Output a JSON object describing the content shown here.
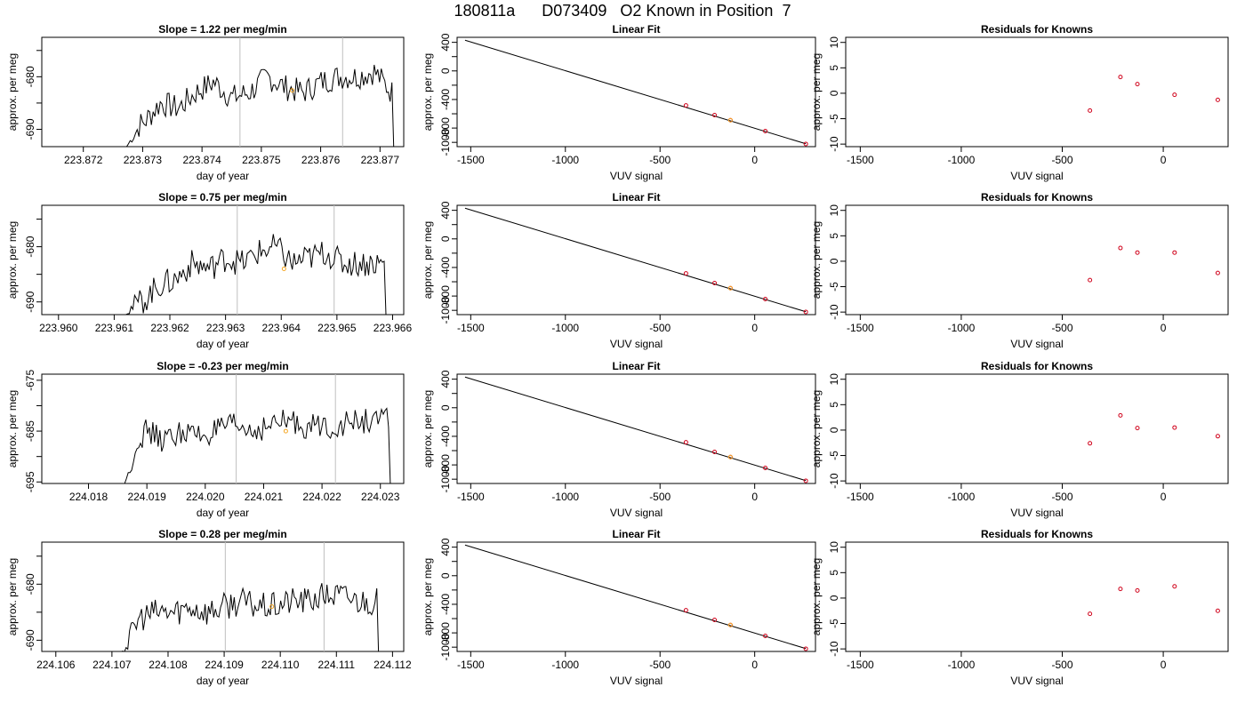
{
  "title": "180811a      D073409   O2 Known in Position  7",
  "colors": {
    "line": "#000000",
    "marker_orange": "#f5a623",
    "marker_red": "#d0021b",
    "guide": "#bfbfbf"
  },
  "chart_data": [
    {
      "type": "line",
      "row": 0,
      "col": 0,
      "title": "Slope =  1.22  per meg/min",
      "xlabel": "day of year",
      "ylabel": "approx. per meg",
      "xlim": [
        223.8713,
        223.8774
      ],
      "ylim": [
        -693.3,
        -672.5
      ],
      "xticks": [
        223.872,
        223.873,
        223.874,
        223.875,
        223.876,
        223.877
      ],
      "xtick_labels": [
        "223.872",
        "223.873",
        "223.874",
        "223.875",
        "223.876",
        "223.877"
      ],
      "yticks": [
        -690,
        -685,
        -680,
        -675
      ],
      "ytick_labels": [
        "-690",
        "",
        "-680",
        ""
      ],
      "vlines": [
        223.87464,
        223.87637
      ],
      "marker": [
        223.87552,
        -682.6
      ],
      "series_start": 223.87273,
      "series_end": 223.87723,
      "series_drop": -693.3,
      "series_base": -684.2,
      "series_trend": 1.3,
      "series": [
        {
          "x": [
            223.873,
            223.8733,
            223.8736,
            223.8739,
            223.8742,
            223.8745,
            223.8748,
            223.8751,
            223.8754,
            223.8757,
            223.876,
            223.8763,
            223.8766,
            223.8769,
            223.8772
          ],
          "y": [
            -689,
            -685,
            -686,
            -683,
            -681,
            -684,
            -683,
            -680,
            -682,
            -683,
            -681,
            -680,
            -680,
            -679,
            -683
          ]
        }
      ]
    },
    {
      "type": "scatter",
      "row": 0,
      "col": 1,
      "title": "Linear Fit",
      "xlabel": "VUV signal",
      "ylabel": "approx. per meg",
      "xlim": [
        -1572,
        321
      ],
      "ylim": [
        -1060,
        470
      ],
      "xticks": [
        -1500,
        -1000,
        -500,
        0
      ],
      "xtick_labels": [
        "-1500",
        "-1000",
        "-500",
        "0"
      ],
      "yticks": [
        400,
        200,
        0,
        -200,
        -400,
        -600,
        -800,
        -1000
      ],
      "ytick_labels": [
        "400",
        "",
        "0",
        "",
        "-400",
        "",
        "-800",
        "-1000"
      ],
      "fit_line": [
        [
          -1530,
          430
        ],
        [
          270,
          -1020
        ]
      ],
      "points": [
        [
          -363,
          -483
        ],
        [
          -212,
          -618
        ],
        [
          -128,
          -690
        ],
        [
          56,
          -842
        ],
        [
          270,
          -1022
        ]
      ],
      "highlight": [
        -128,
        -690
      ]
    },
    {
      "type": "scatter",
      "row": 0,
      "col": 2,
      "title": "Residuals for Knowns",
      "xlabel": "VUV signal",
      "ylabel": "approx. per meg",
      "xlim": [
        -1572,
        321
      ],
      "ylim": [
        -10.5,
        11.0
      ],
      "xticks": [
        -1500,
        -1000,
        -500,
        0
      ],
      "xtick_labels": [
        "-1500",
        "-1000",
        "-500",
        "0"
      ],
      "yticks": [
        10,
        5,
        0,
        -5,
        -10
      ],
      "ytick_labels": [
        "10",
        "5",
        "0",
        "-5",
        "-10"
      ],
      "points": [
        [
          -363,
          -3.4
        ],
        [
          -212,
          3.2
        ],
        [
          -128,
          1.8
        ],
        [
          56,
          -0.3
        ],
        [
          270,
          -1.3
        ]
      ]
    },
    {
      "type": "line",
      "row": 1,
      "col": 0,
      "title": "Slope =  0.75  per meg/min",
      "xlabel": "day of year",
      "ylabel": "approx. per meg",
      "xlim": [
        223.9597,
        223.9662
      ],
      "ylim": [
        -692.3,
        -672.5
      ],
      "xticks": [
        223.96,
        223.961,
        223.962,
        223.963,
        223.964,
        223.965,
        223.966
      ],
      "xtick_labels": [
        "223.960",
        "223.961",
        "223.962",
        "223.963",
        "223.964",
        "223.965",
        "223.966"
      ],
      "yticks": [
        -690,
        -685,
        -680,
        -675
      ],
      "ytick_labels": [
        "-690",
        "",
        "-680",
        ""
      ],
      "vlines": [
        223.96321,
        223.96495
      ],
      "marker": [
        223.96405,
        -684.0
      ],
      "series_start": 223.96118,
      "series_end": 223.96588,
      "series_drop": -692.3,
      "series_base": -685.0,
      "series_trend": 1.0,
      "series": [
        {
          "x": [
            223.9615,
            223.9618,
            223.9621,
            223.9624,
            223.9627,
            223.963,
            223.9633,
            223.9636,
            223.9639,
            223.9642,
            223.9645,
            223.9648,
            223.9651,
            223.9654,
            223.9657
          ],
          "y": [
            -690,
            -687,
            -686,
            -683,
            -684,
            -682,
            -683,
            -681,
            -680,
            -683,
            -682,
            -681,
            -683,
            -683,
            -683
          ]
        }
      ]
    },
    {
      "type": "scatter",
      "row": 1,
      "col": 1,
      "title": "Linear Fit",
      "xlabel": "VUV signal",
      "ylabel": "approx. per meg",
      "xlim": [
        -1572,
        321
      ],
      "ylim": [
        -1060,
        470
      ],
      "xticks": [
        -1500,
        -1000,
        -500,
        0
      ],
      "xtick_labels": [
        "-1500",
        "-1000",
        "-500",
        "0"
      ],
      "yticks": [
        400,
        200,
        0,
        -200,
        -400,
        -600,
        -800,
        -1000
      ],
      "ytick_labels": [
        "400",
        "",
        "0",
        "",
        "-400",
        "",
        "-800",
        "-1000"
      ],
      "fit_line": [
        [
          -1530,
          430
        ],
        [
          270,
          -1020
        ]
      ],
      "points": [
        [
          -363,
          -483
        ],
        [
          -212,
          -618
        ],
        [
          -128,
          -690
        ],
        [
          56,
          -842
        ],
        [
          270,
          -1022
        ]
      ],
      "highlight": [
        -128,
        -690
      ]
    },
    {
      "type": "scatter",
      "row": 1,
      "col": 2,
      "title": "Residuals for Knowns",
      "xlabel": "VUV signal",
      "ylabel": "approx. per meg",
      "xlim": [
        -1572,
        321
      ],
      "ylim": [
        -10.5,
        11.0
      ],
      "xticks": [
        -1500,
        -1000,
        -500,
        0
      ],
      "xtick_labels": [
        "-1500",
        "-1000",
        "-500",
        "0"
      ],
      "yticks": [
        10,
        5,
        0,
        -5,
        -10
      ],
      "ytick_labels": [
        "10",
        "5",
        "0",
        "-5",
        "-10"
      ],
      "points": [
        [
          -363,
          -3.7
        ],
        [
          -212,
          2.6
        ],
        [
          -128,
          1.7
        ],
        [
          56,
          1.7
        ],
        [
          270,
          -2.3
        ]
      ]
    },
    {
      "type": "line",
      "row": 2,
      "col": 0,
      "title": "Slope =  -0.23  per meg/min",
      "xlabel": "day of year",
      "ylabel": "approx. per meg",
      "xlim": [
        224.0172,
        224.0234
      ],
      "ylim": [
        -695.3,
        -673.8
      ],
      "xticks": [
        224.018,
        224.019,
        224.02,
        224.021,
        224.022,
        224.023
      ],
      "xtick_labels": [
        "224.018",
        "224.019",
        "224.020",
        "224.021",
        "224.022",
        "224.023"
      ],
      "yticks": [
        -695,
        -690,
        -685,
        -680,
        -675
      ],
      "ytick_labels": [
        "-695",
        "",
        "-685",
        "",
        "-675"
      ],
      "vlines": [
        224.02053,
        224.02223
      ],
      "marker": [
        224.02138,
        -685.0
      ],
      "series_start": 224.01862,
      "series_end": 224.02317,
      "series_drop": -695.3,
      "series_base": -685.6,
      "series_trend": 0.8,
      "series": [
        {
          "x": [
            224.0187,
            224.019,
            224.0193,
            224.0196,
            224.0199,
            224.0202,
            224.0205,
            224.0208,
            224.0211,
            224.0214,
            224.0217,
            224.022,
            224.0223,
            224.0226,
            224.0229
          ],
          "y": [
            -688,
            -685,
            -687,
            -685,
            -686,
            -685,
            -684,
            -685,
            -684,
            -683,
            -684,
            -684,
            -684,
            -683,
            -683
          ]
        }
      ]
    },
    {
      "type": "scatter",
      "row": 2,
      "col": 1,
      "title": "Linear Fit",
      "xlabel": "VUV signal",
      "ylabel": "approx. per meg",
      "xlim": [
        -1572,
        321
      ],
      "ylim": [
        -1060,
        470
      ],
      "xticks": [
        -1500,
        -1000,
        -500,
        0
      ],
      "xtick_labels": [
        "-1500",
        "-1000",
        "-500",
        "0"
      ],
      "yticks": [
        400,
        200,
        0,
        -200,
        -400,
        -600,
        -800,
        -1000
      ],
      "ytick_labels": [
        "400",
        "",
        "0",
        "",
        "-400",
        "",
        "-800",
        "-1000"
      ],
      "fit_line": [
        [
          -1530,
          430
        ],
        [
          270,
          -1020
        ]
      ],
      "points": [
        [
          -363,
          -483
        ],
        [
          -212,
          -618
        ],
        [
          -128,
          -690
        ],
        [
          56,
          -842
        ],
        [
          270,
          -1022
        ]
      ],
      "highlight": [
        -128,
        -690
      ]
    },
    {
      "type": "scatter",
      "row": 2,
      "col": 2,
      "title": "Residuals for Knowns",
      "xlabel": "VUV signal",
      "ylabel": "approx. per meg",
      "xlim": [
        -1572,
        321
      ],
      "ylim": [
        -10.5,
        11.0
      ],
      "xticks": [
        -1500,
        -1000,
        -500,
        0
      ],
      "xtick_labels": [
        "-1500",
        "-1000",
        "-500",
        "0"
      ],
      "yticks": [
        10,
        5,
        0,
        -5,
        -10
      ],
      "ytick_labels": [
        "10",
        "5",
        "0",
        "-5",
        "-10"
      ],
      "points": [
        [
          -363,
          -2.6
        ],
        [
          -212,
          2.9
        ],
        [
          -128,
          0.4
        ],
        [
          56,
          0.5
        ],
        [
          270,
          -1.2
        ]
      ]
    },
    {
      "type": "line",
      "row": 3,
      "col": 0,
      "title": "Slope =  0.28  per meg/min",
      "xlabel": "day of year",
      "ylabel": "approx. per meg",
      "xlim": [
        224.10575,
        224.1122
      ],
      "ylim": [
        -692.0,
        -672.5
      ],
      "xticks": [
        224.106,
        224.107,
        224.108,
        224.109,
        224.11,
        224.111,
        224.112
      ],
      "xtick_labels": [
        "224.106",
        "224.107",
        "224.108",
        "224.109",
        "224.110",
        "224.111",
        "224.112"
      ],
      "yticks": [
        -690,
        -685,
        -680,
        -675
      ],
      "ytick_labels": [
        "-690",
        "",
        "-680",
        ""
      ],
      "vlines": [
        224.10902,
        224.11078
      ],
      "marker": [
        224.10985,
        -684.0
      ],
      "series_start": 224.10713,
      "series_end": 224.11175,
      "series_drop": -692.0,
      "series_base": -685.0,
      "series_trend": 0.7,
      "series": [
        {
          "x": [
            224.1072,
            224.1075,
            224.1078,
            224.1081,
            224.1084,
            224.1087,
            224.109,
            224.1093,
            224.1096,
            224.1099,
            224.1102,
            224.1105,
            224.1108,
            224.1111,
            224.1114
          ],
          "y": [
            -691,
            -686,
            -685,
            -685,
            -684,
            -685,
            -684,
            -683,
            -684,
            -684,
            -683,
            -683,
            -682,
            -682,
            -683
          ]
        }
      ]
    },
    {
      "type": "scatter",
      "row": 3,
      "col": 1,
      "title": "Linear Fit",
      "xlabel": "VUV signal",
      "ylabel": "approx. per meg",
      "xlim": [
        -1572,
        321
      ],
      "ylim": [
        -1060,
        470
      ],
      "xticks": [
        -1500,
        -1000,
        -500,
        0
      ],
      "xtick_labels": [
        "-1500",
        "-1000",
        "-500",
        "0"
      ],
      "yticks": [
        400,
        200,
        0,
        -200,
        -400,
        -600,
        -800,
        -1000
      ],
      "ytick_labels": [
        "400",
        "",
        "0",
        "",
        "-400",
        "",
        "-800",
        "-1000"
      ],
      "fit_line": [
        [
          -1530,
          430
        ],
        [
          270,
          -1020
        ]
      ],
      "points": [
        [
          -363,
          -483
        ],
        [
          -212,
          -618
        ],
        [
          -128,
          -690
        ],
        [
          56,
          -842
        ],
        [
          270,
          -1022
        ]
      ],
      "highlight": [
        -128,
        -690
      ]
    },
    {
      "type": "scatter",
      "row": 3,
      "col": 2,
      "title": "Residuals for Knowns",
      "xlabel": "VUV signal",
      "ylabel": "approx. per meg",
      "xlim": [
        -1572,
        321
      ],
      "ylim": [
        -10.5,
        11.0
      ],
      "xticks": [
        -1500,
        -1000,
        -500,
        0
      ],
      "xtick_labels": [
        "-1500",
        "-1000",
        "-500",
        "0"
      ],
      "yticks": [
        10,
        5,
        0,
        -5,
        -10
      ],
      "ytick_labels": [
        "10",
        "5",
        "0",
        "-5",
        "-10"
      ],
      "points": [
        [
          -363,
          -3.1
        ],
        [
          -212,
          1.8
        ],
        [
          -128,
          1.5
        ],
        [
          56,
          2.3
        ],
        [
          270,
          -2.5
        ]
      ]
    }
  ]
}
